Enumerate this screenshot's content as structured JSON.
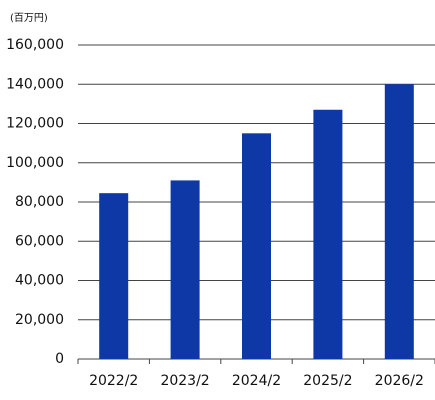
{
  "chart_data": {
    "type": "bar",
    "unit_label": "(百万円)",
    "categories": [
      "2022/2",
      "2023/2",
      "2024/2",
      "2025/2",
      "2026/2"
    ],
    "values": [
      84500,
      91000,
      115000,
      127000,
      140000
    ],
    "color": "#0e38a6",
    "ylim": [
      0,
      160000
    ],
    "yticks": [
      0,
      {
        "value": 20000,
        "label": "20,000"
      },
      {
        "value": 40000,
        "label": "40,000"
      },
      {
        "value": 60000,
        "label": "60,000"
      },
      {
        "value": 80000,
        "label": "80,000"
      },
      {
        "value": 100000,
        "label": "100,000"
      },
      {
        "value": 120000,
        "label": "120,000"
      },
      {
        "value": 140000,
        "label": "140,000"
      },
      {
        "value": 160000,
        "label": "160,000"
      }
    ],
    "grid": true
  }
}
